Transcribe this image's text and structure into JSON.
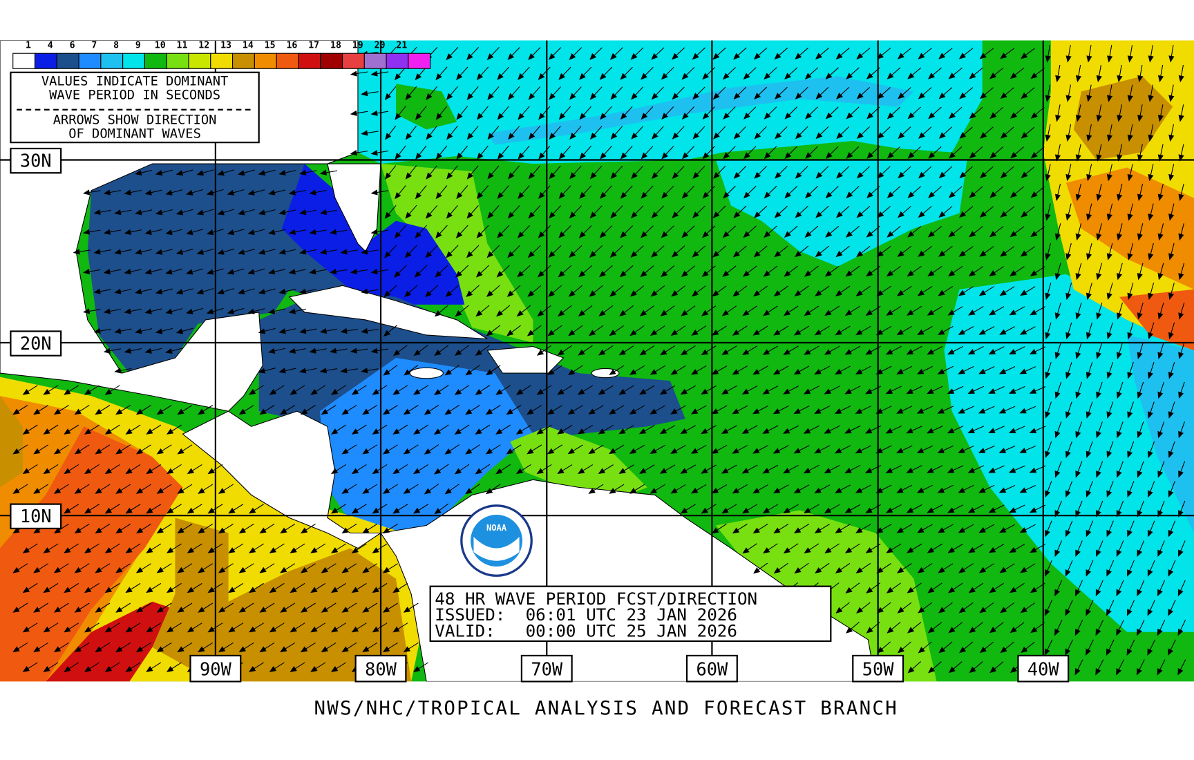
{
  "legend": {
    "labels": [
      "1",
      "4",
      "6",
      "7",
      "8",
      "9",
      "10",
      "11",
      "12",
      "13",
      "14",
      "15",
      "16",
      "17",
      "18",
      "19",
      "20",
      "21"
    ],
    "colors": [
      "#ffffff",
      "#0a1ee6",
      "#1c4f8c",
      "#1e8cff",
      "#1ec0f0",
      "#00e4ea",
      "#10b810",
      "#78e010",
      "#c8e600",
      "#f0dc00",
      "#c89000",
      "#f08c00",
      "#f05a10",
      "#d01010",
      "#a00000",
      "#e84040",
      "#a070d0",
      "#9030f0",
      "#f020f0"
    ]
  },
  "legend_note": [
    "VALUES INDICATE DOMINANT",
    "WAVE PERIOD IN SECONDS",
    "ARROWS SHOW DIRECTION",
    "OF DOMINANT WAVES"
  ],
  "latitude_labels": [
    "30N",
    "20N",
    "10N"
  ],
  "longitude_labels": [
    "90W",
    "80W",
    "70W",
    "60W",
    "50W",
    "40W"
  ],
  "info": [
    "48 HR WAVE PERIOD FCST/DIRECTION",
    "ISSUED:  06:01 UTC 23 JAN 2026",
    "VALID:   00:00 UTC 25 JAN 2026"
  ],
  "logo": "NOAA",
  "footer": "NWS/NHC/TROPICAL ANALYSIS AND FORECAST BRANCH"
}
